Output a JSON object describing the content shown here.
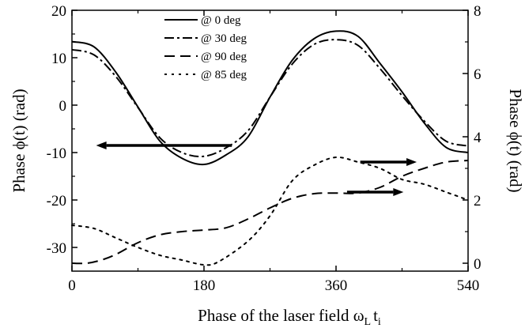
{
  "chart_data": {
    "type": "line",
    "title": "",
    "xlabel": "Phase of the laser field ω",
    "xlabel_sub": "L",
    "xlabel_tail": "t",
    "xlabel_sub2": "i",
    "ylabel_left": "Phase ϕ(t) (rad)",
    "ylabel_right": "Phase ϕ(t) (rad)",
    "xlim": [
      0,
      540
    ],
    "ylim_left": [
      -35,
      20
    ],
    "ylim_right": [
      -0.25,
      8
    ],
    "x_ticks": [
      0,
      180,
      360,
      540
    ],
    "x_tick_labels": [
      "0",
      "180",
      "360",
      "540"
    ],
    "y_ticks_left": [
      20,
      10,
      0,
      -10,
      -20,
      -30
    ],
    "y_tick_labels_left": [
      "20",
      "10",
      "0",
      "-10",
      "-20",
      "-30"
    ],
    "y_ticks_right": [
      8,
      6,
      4,
      2,
      0
    ],
    "y_tick_labels_right": [
      "8",
      "6",
      "4",
      "2",
      "0"
    ],
    "legend_position": "top-center",
    "series": [
      {
        "name": "@ 0 deg",
        "axis": "left",
        "style": "solid",
        "x": [
          0,
          30,
          60,
          90,
          120,
          150,
          180,
          210,
          240,
          270,
          300,
          330,
          360,
          390,
          420,
          450,
          480,
          510,
          540
        ],
        "y": [
          13.4,
          12.3,
          6.9,
          -0.4,
          -7.6,
          -11.2,
          -12.5,
          -10.5,
          -6.7,
          1.7,
          9.4,
          14.0,
          15.6,
          14.5,
          8.8,
          2.8,
          -3.7,
          -8.9,
          -10.0
        ]
      },
      {
        "name": "@ 30 deg",
        "axis": "left",
        "style": "dashdot",
        "x": [
          0,
          30,
          60,
          90,
          120,
          150,
          180,
          210,
          240,
          270,
          300,
          330,
          360,
          390,
          420,
          450,
          480,
          510,
          540
        ],
        "y": [
          11.7,
          10.6,
          6.0,
          -0.5,
          -6.9,
          -10.0,
          -10.8,
          -9.0,
          -5.4,
          1.7,
          8.6,
          12.8,
          13.8,
          12.6,
          7.7,
          2.0,
          -3.3,
          -7.6,
          -8.6
        ]
      },
      {
        "name": "@ 90 deg",
        "axis": "right",
        "style": "dashed",
        "x": [
          0,
          20,
          40,
          60,
          90,
          120,
          150,
          180,
          210,
          240,
          270,
          300,
          330,
          360,
          390,
          420,
          450,
          480,
          510,
          540
        ],
        "y": [
          0.0,
          0.0,
          0.1,
          0.28,
          0.65,
          0.9,
          1.0,
          1.05,
          1.12,
          1.4,
          1.75,
          2.05,
          2.2,
          2.22,
          2.22,
          2.4,
          2.75,
          3.0,
          3.2,
          3.25
        ]
      },
      {
        "name": "@ 85 deg",
        "axis": "right",
        "style": "dotted",
        "x": [
          0,
          30,
          60,
          90,
          120,
          150,
          180,
          200,
          240,
          270,
          300,
          330,
          360,
          390,
          420,
          450,
          480,
          510,
          540
        ],
        "y": [
          1.2,
          1.1,
          0.8,
          0.5,
          0.25,
          0.1,
          -0.05,
          0.05,
          0.7,
          1.5,
          2.6,
          3.1,
          3.35,
          3.2,
          3.0,
          2.65,
          2.5,
          2.25,
          2.0
        ]
      }
    ],
    "annotations": [
      {
        "type": "arrow",
        "direction": "left",
        "axis": "left"
      },
      {
        "type": "arrow",
        "direction": "right",
        "axis": "right"
      },
      {
        "type": "arrow",
        "direction": "right",
        "axis": "right"
      }
    ]
  }
}
